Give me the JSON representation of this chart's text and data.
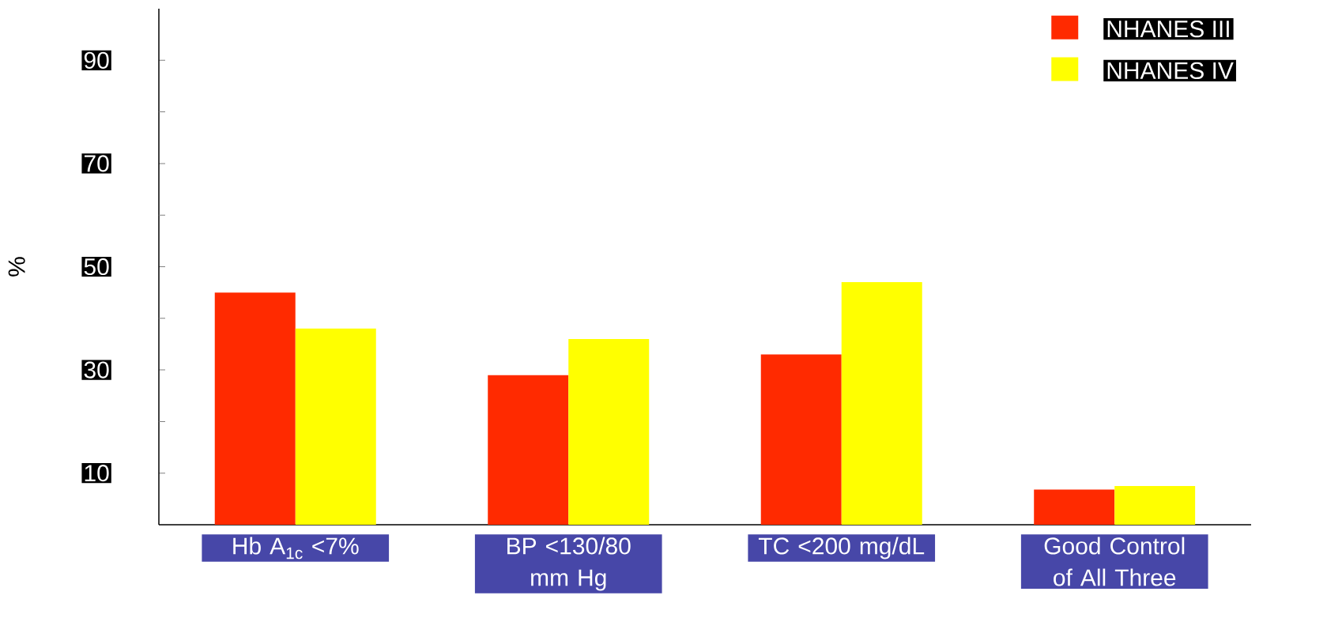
{
  "chart_data": {
    "type": "bar",
    "ylabel": "%",
    "categories": [
      "Hb A$_{1c}$ <7%",
      "BP <130/80 mm Hg",
      "TC <200 mg/dL",
      "Good Control of All Three"
    ],
    "series": [
      {
        "name": "NHANES III",
        "color": "#ff2a00",
        "values": [
          45,
          29,
          33,
          6.8
        ]
      },
      {
        "name": "NHANES IV",
        "color": "#ffff00",
        "values": [
          38,
          36,
          47,
          7.5
        ]
      }
    ],
    "ylim": [
      0,
      100
    ],
    "yticks": [
      10,
      {
        "value": 20,
        "label": null
      },
      30,
      {
        "value": 40,
        "label": null
      },
      50,
      {
        "value": 60,
        "label": null
      },
      70,
      {
        "value": 80,
        "label": null
      },
      90
    ],
    "legend": "top right"
  }
}
